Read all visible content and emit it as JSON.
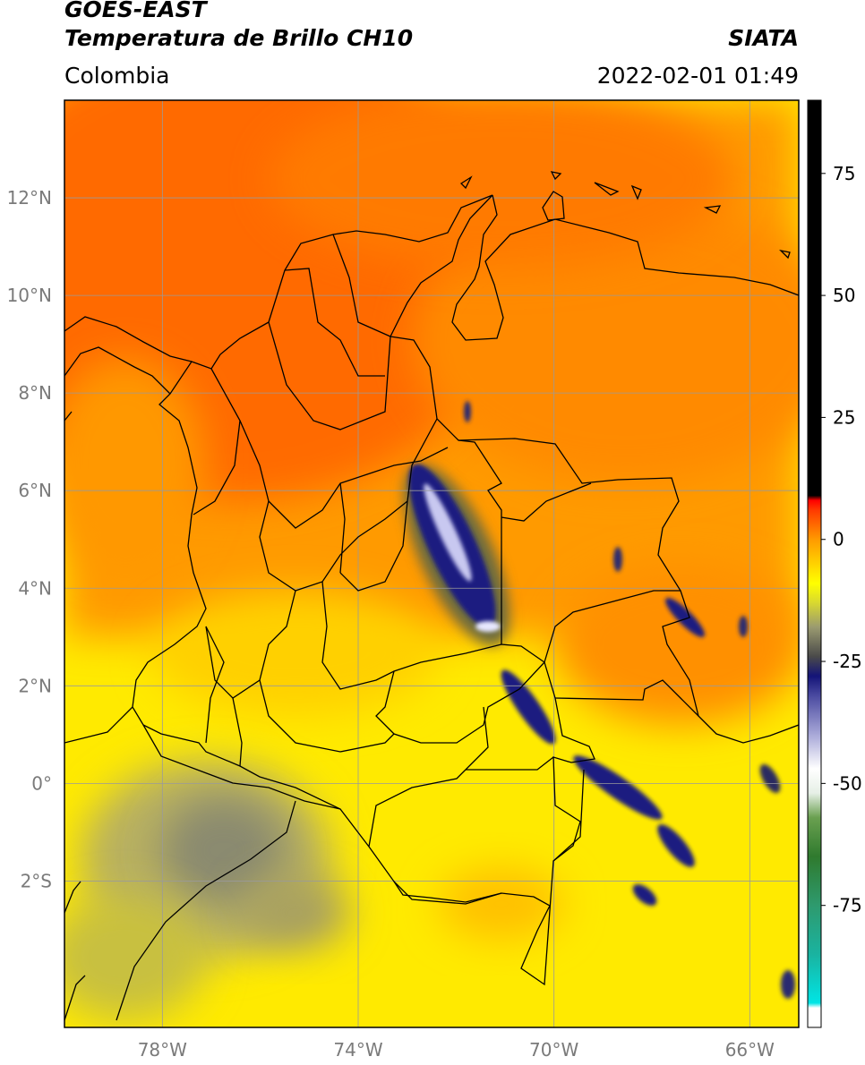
{
  "header": {
    "satellite": "GOES-EAST",
    "product": "Temperatura de Brillo CH10",
    "source": "SIATA",
    "region": "Colombia",
    "timestamp": "2022-02-01 01:49"
  },
  "map": {
    "lon_range": [
      -80,
      -65
    ],
    "lat_range": [
      -5,
      14
    ],
    "lon_ticks": [
      {
        "value": -78,
        "label": "78°W"
      },
      {
        "value": -74,
        "label": "74°W"
      },
      {
        "value": -70,
        "label": "70°W"
      },
      {
        "value": -66,
        "label": "66°W"
      }
    ],
    "lat_ticks": [
      {
        "value": 12,
        "label": "12°N"
      },
      {
        "value": 10,
        "label": "10°N"
      },
      {
        "value": 8,
        "label": "8°N"
      },
      {
        "value": 6,
        "label": "6°N"
      },
      {
        "value": 4,
        "label": "4°N"
      },
      {
        "value": 2,
        "label": "2°N"
      },
      {
        "value": 0,
        "label": "0°"
      },
      {
        "value": -2,
        "label": "2°S"
      }
    ],
    "grid": true,
    "colors": {
      "land_outline": "#000000",
      "grid": "#9a9a9a"
    }
  },
  "colorbar": {
    "range": [
      -100,
      90
    ],
    "ticks": [
      {
        "value": 75,
        "label": "75"
      },
      {
        "value": 50,
        "label": "50"
      },
      {
        "value": 25,
        "label": "25"
      },
      {
        "value": 0,
        "label": "0"
      },
      {
        "value": -25,
        "label": "-25"
      },
      {
        "value": -50,
        "label": "-50"
      },
      {
        "value": -75,
        "label": "-75"
      }
    ],
    "stops": [
      {
        "value": -100,
        "color": "#ffffff"
      },
      {
        "value": -96,
        "color": "#ffffff"
      },
      {
        "value": -95,
        "color": "#00e5e5"
      },
      {
        "value": -85,
        "color": "#1ab3a0"
      },
      {
        "value": -75,
        "color": "#2e9a6e"
      },
      {
        "value": -65,
        "color": "#2f7a2e"
      },
      {
        "value": -57,
        "color": "#6aa050"
      },
      {
        "value": -52,
        "color": "#e6efe6"
      },
      {
        "value": -47,
        "color": "#ffffff"
      },
      {
        "value": -40,
        "color": "#a8a8d8"
      },
      {
        "value": -32,
        "color": "#4a4aa0"
      },
      {
        "value": -28,
        "color": "#141478"
      },
      {
        "value": -24,
        "color": "#4a4a4a"
      },
      {
        "value": -18,
        "color": "#9a9a70"
      },
      {
        "value": -13,
        "color": "#d8d830"
      },
      {
        "value": -9,
        "color": "#ffff00"
      },
      {
        "value": 0,
        "color": "#ff9a00"
      },
      {
        "value": 6,
        "color": "#ff3a00"
      },
      {
        "value": 8,
        "color": "#ff0000"
      },
      {
        "value": 9,
        "color": "#000000"
      },
      {
        "value": 90,
        "color": "#000000"
      }
    ]
  }
}
